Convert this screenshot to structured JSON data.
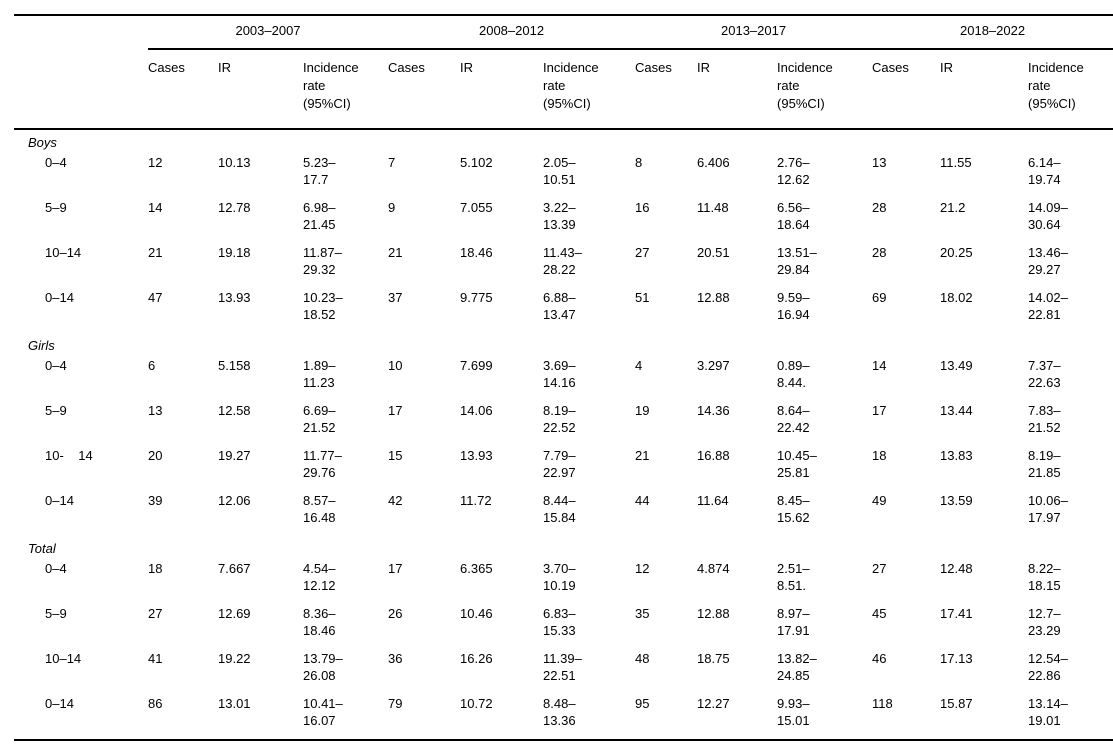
{
  "table": {
    "periods": [
      "2003–2007",
      "2008–2012",
      "2013–2017",
      "2018–2022"
    ],
    "column_headers": {
      "cases": "Cases",
      "ir": "IR",
      "incidence": "Incidence\nrate\n(95%CI)"
    },
    "sections": [
      {
        "label": "Boys",
        "rows": [
          {
            "age": "0–4",
            "cells": [
              "12",
              "10.13",
              "5.23–\n17.7",
              "7",
              "5.102",
              "2.05–\n10.51",
              "8",
              "6.406",
              "2.76–\n12.62",
              "13",
              "11.55",
              "6.14–\n19.74"
            ]
          },
          {
            "age": "5–9",
            "cells": [
              "14",
              "12.78",
              "6.98–\n21.45",
              "9",
              "7.055",
              "3.22–\n13.39",
              "16",
              "11.48",
              "6.56–\n18.64",
              "28",
              "21.2",
              "14.09–\n30.64"
            ]
          },
          {
            "age": "10–14",
            "cells": [
              "21",
              "19.18",
              "11.87–\n29.32",
              "21",
              "18.46",
              "11.43–\n28.22",
              "27",
              "20.51",
              "13.51–\n29.84",
              "28",
              "20.25",
              "13.46–\n29.27"
            ]
          },
          {
            "age": "0–14",
            "cells": [
              "47",
              "13.93",
              "10.23–\n18.52",
              "37",
              "9.775",
              "6.88–\n13.47",
              "51",
              "12.88",
              "9.59–\n16.94",
              "69",
              "18.02",
              "14.02–\n22.81"
            ]
          }
        ]
      },
      {
        "label": "Girls",
        "rows": [
          {
            "age": "0–4",
            "cells": [
              "6",
              "5.158",
              "1.89–\n11.23",
              "10",
              "7.699",
              "3.69–\n14.16",
              "4",
              "3.297",
              "0.89–\n8.44.",
              "14",
              "13.49",
              "7.37–\n22.63"
            ]
          },
          {
            "age": "5–9",
            "cells": [
              "13",
              "12.58",
              "6.69–\n21.52",
              "17",
              "14.06",
              "8.19–\n22.52",
              "19",
              "14.36",
              "8.64–\n22.42",
              "17",
              "13.44",
              "7.83–\n21.52"
            ]
          },
          {
            "age": "10-    14",
            "cells": [
              "20",
              "19.27",
              "11.77–\n29.76",
              "15",
              "13.93",
              "7.79–\n22.97",
              "21",
              "16.88",
              "10.45–\n25.81",
              "18",
              "13.83",
              "8.19–\n21.85"
            ]
          },
          {
            "age": "0–14",
            "cells": [
              "39",
              "12.06",
              "8.57–\n16.48",
              "42",
              "11.72",
              "8.44–\n15.84",
              "44",
              "11.64",
              "8.45–\n15.62",
              "49",
              "13.59",
              "10.06–\n17.97"
            ]
          }
        ]
      },
      {
        "label": "Total",
        "rows": [
          {
            "age": "0–4",
            "cells": [
              "18",
              "7.667",
              "4.54–\n12.12",
              "17",
              "6.365",
              "3.70–\n10.19",
              "12",
              "4.874",
              "2.51–\n8.51.",
              "27",
              "12.48",
              "8.22–\n18.15"
            ]
          },
          {
            "age": "5–9",
            "cells": [
              "27",
              "12.69",
              "8.36–\n18.46",
              "26",
              "10.46",
              "6.83–\n15.33",
              "35",
              "12.88",
              "8.97–\n17.91",
              "45",
              "17.41",
              "12.7–\n23.29"
            ]
          },
          {
            "age": "10–14",
            "cells": [
              "41",
              "19.22",
              "13.79–\n26.08",
              "36",
              "16.26",
              "11.39–\n22.51",
              "48",
              "18.75",
              "13.82–\n24.85",
              "46",
              "17.13",
              "12.54–\n22.86"
            ]
          },
          {
            "age": "0–14",
            "cells": [
              "86",
              "13.01",
              "10.41–\n16.07",
              "79",
              "10.72",
              "8.48–\n13.36",
              "95",
              "12.27",
              "9.93–\n15.01",
              "118",
              "15.87",
              "13.14–\n19.01"
            ]
          }
        ]
      }
    ]
  }
}
